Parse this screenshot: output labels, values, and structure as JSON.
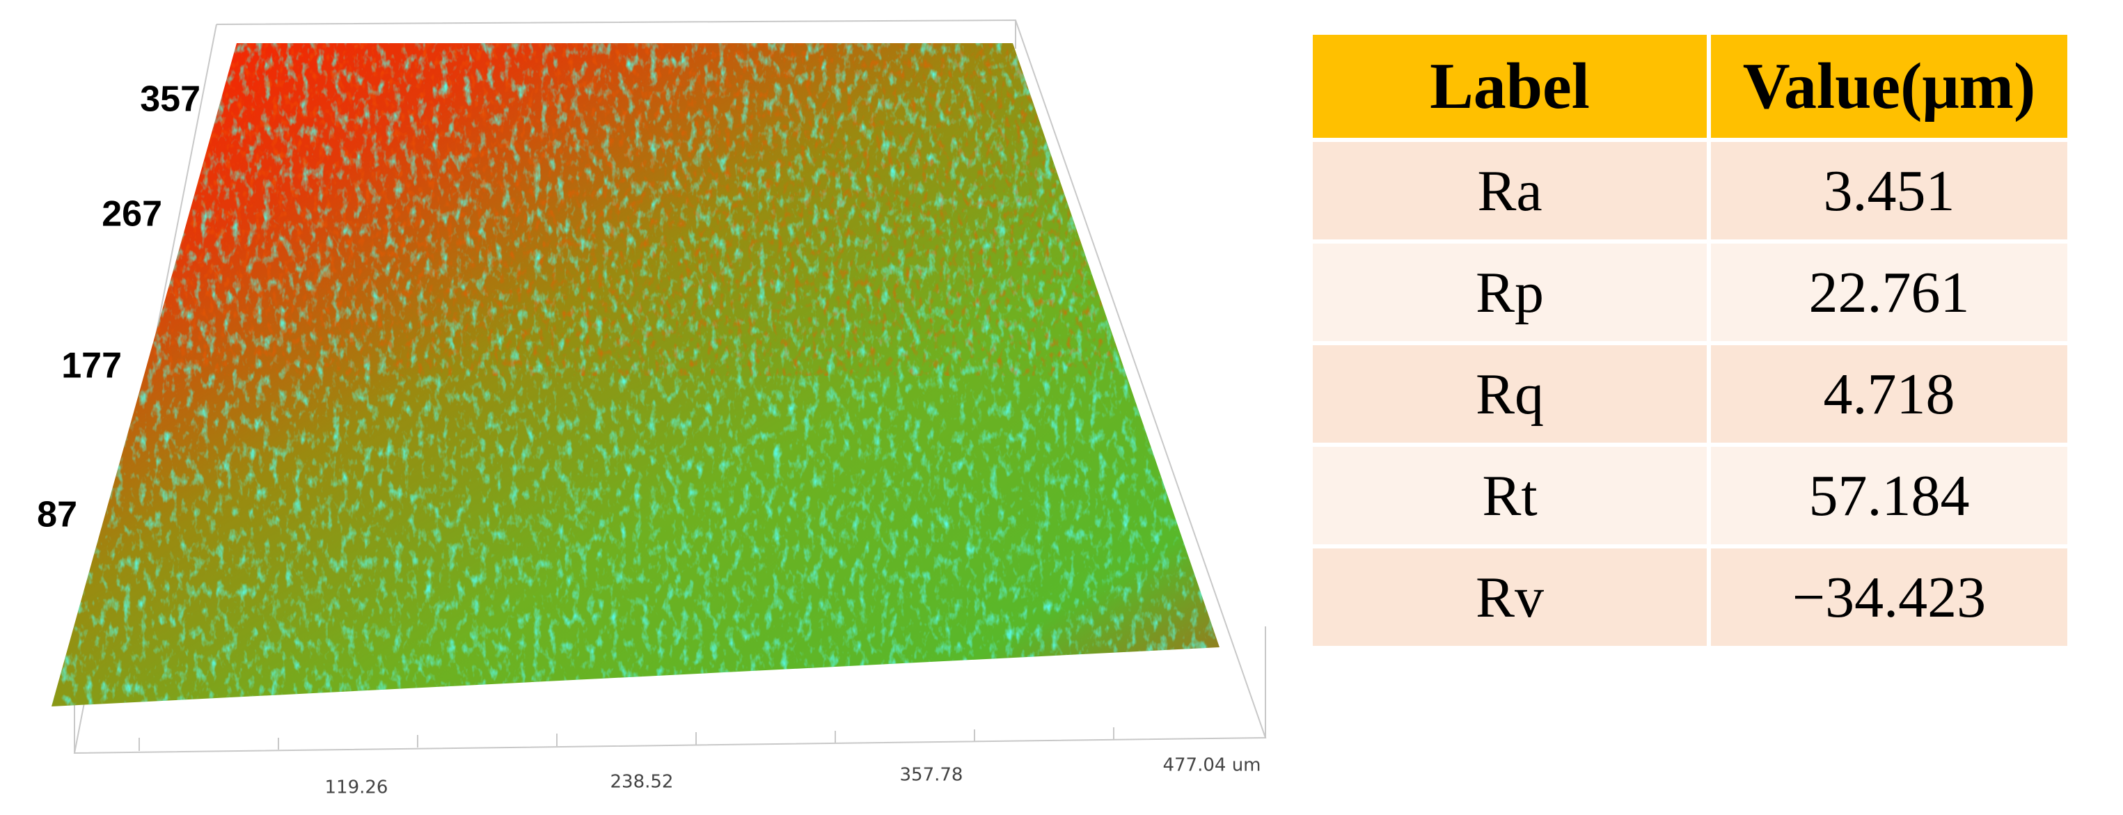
{
  "surface": {
    "z_labels": [
      "357",
      "267",
      "177",
      "87"
    ],
    "x_labels": [
      "119.26",
      "238.52",
      "357.78",
      "477.04 um"
    ]
  },
  "table": {
    "header": [
      "Label",
      "Value(μm)"
    ],
    "rows": [
      [
        "Ra",
        "3.451"
      ],
      [
        "Rp",
        "22.761"
      ],
      [
        "Rq",
        "4.718"
      ],
      [
        "Rt",
        "57.184"
      ],
      [
        "Rv",
        "−34.423"
      ]
    ]
  }
}
